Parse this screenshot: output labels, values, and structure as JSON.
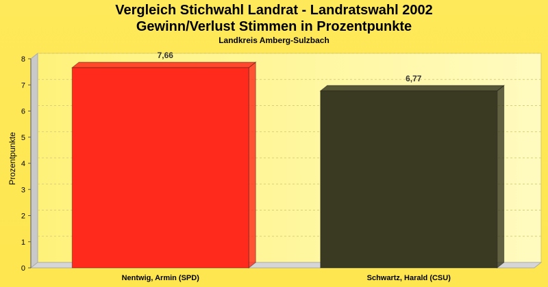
{
  "chart_data": {
    "type": "bar",
    "title_lines": [
      "Vergleich Stichwahl Landrat - Landratswahl 2002",
      "Gewinn/Verlust Stimmen in Prozentpunkte"
    ],
    "subtitle": "Landkreis Amberg-Sulzbach",
    "ylabel": "Prozentpunkte",
    "categories": [
      "Nentwig, Armin (SPD)",
      "Schwartz, Harald (CSU)"
    ],
    "values": [
      7.66,
      6.77
    ],
    "data_labels": [
      "7,66",
      "6,77"
    ],
    "bar_colors": [
      "#ff2a1c",
      "#3a3a22"
    ],
    "ylim": [
      0,
      8
    ],
    "yticks": [
      "0",
      "1",
      "2",
      "3",
      "4",
      "5",
      "6",
      "7",
      "8"
    ],
    "grid": true
  }
}
